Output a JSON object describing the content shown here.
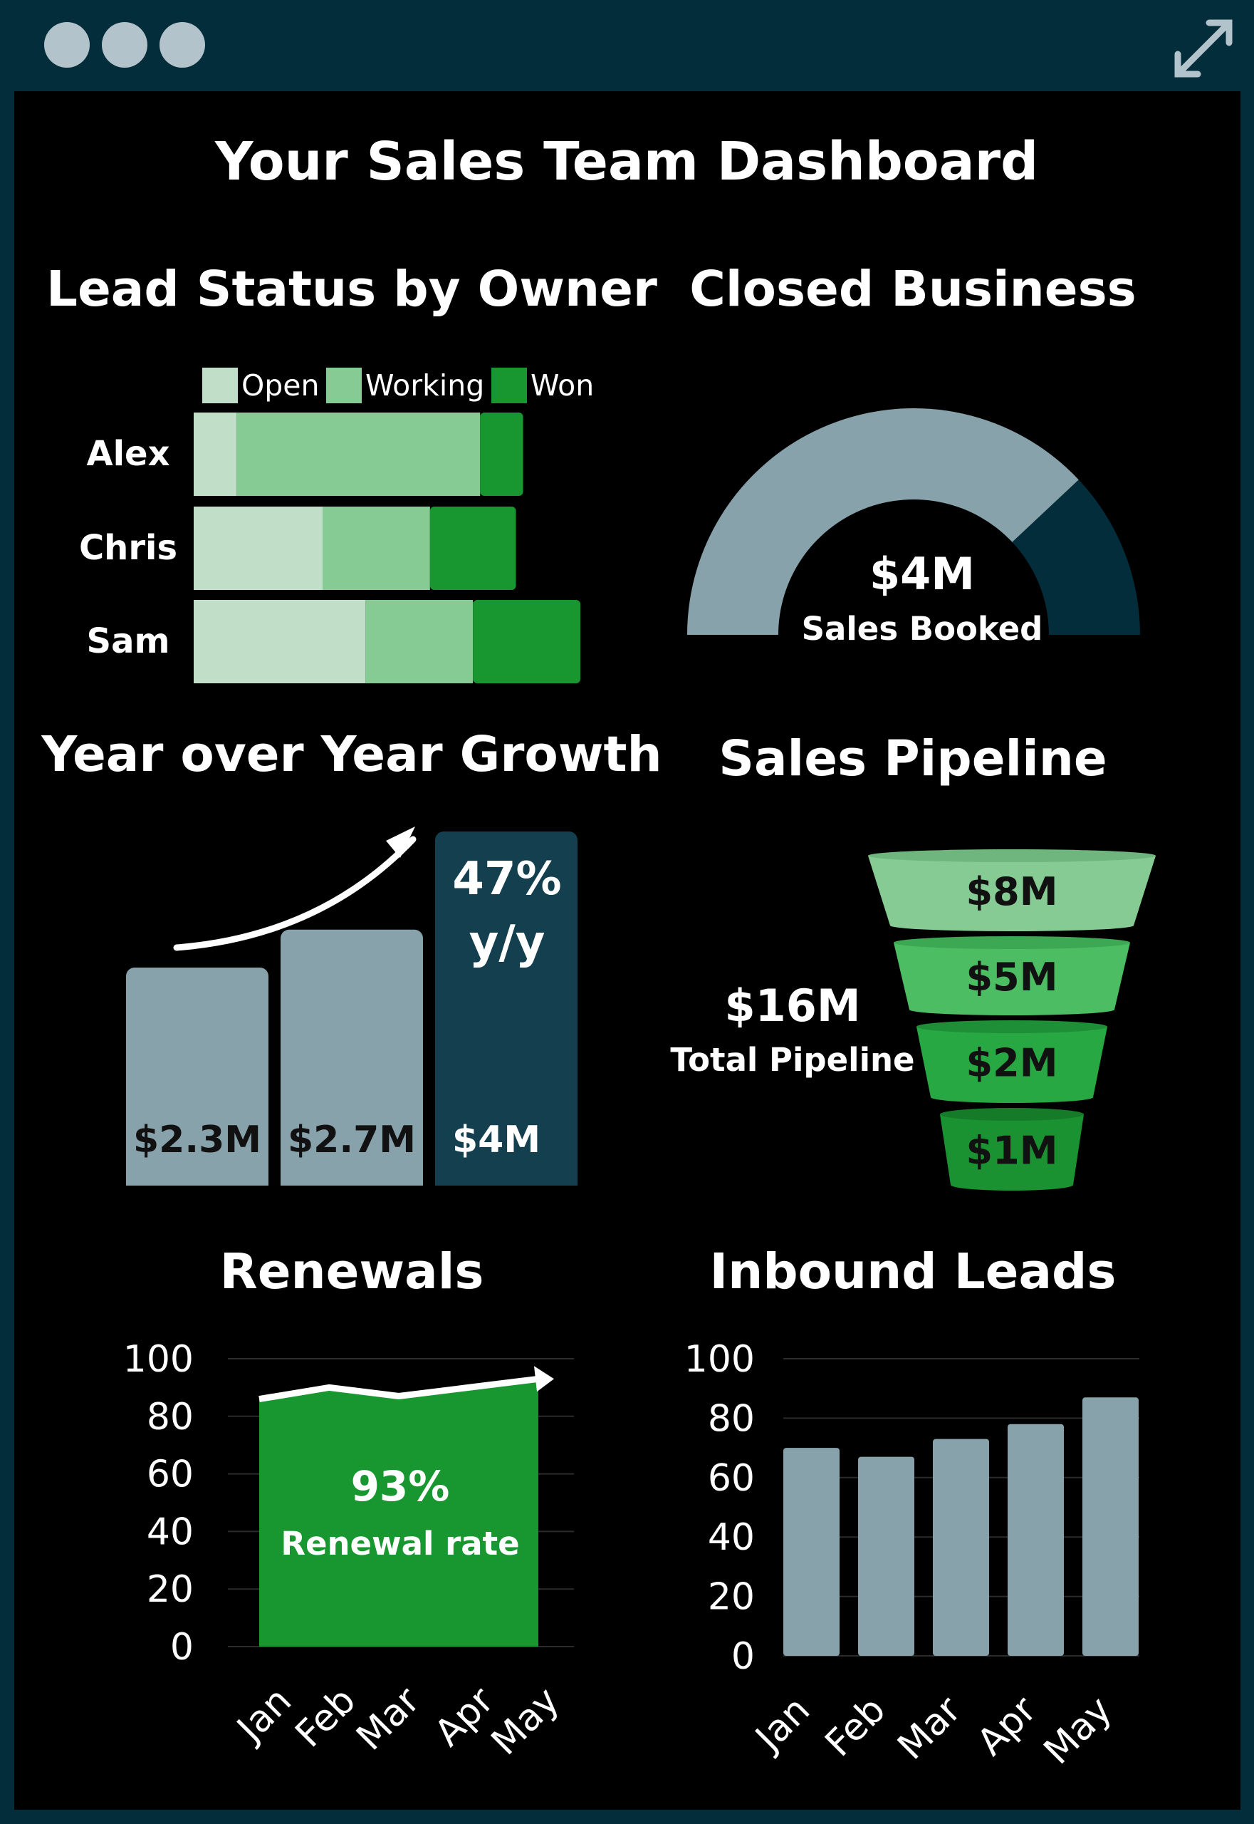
{
  "window": {
    "controls": [
      "window-dot",
      "window-dot",
      "window-dot"
    ],
    "resize_icon": "expand-arrows-icon"
  },
  "colors": {
    "frame": "#032d3a",
    "panel": "#000000",
    "open": "#c1dfc8",
    "working": "#85cb93",
    "won": "#18962f",
    "slate": "#87a2aa",
    "dark_teal": "#143f4f",
    "navy": "#032d3a"
  },
  "dashboard_title": "Your Sales Team Dashboard",
  "lead_status": {
    "title": "Lead Status by Owner",
    "legend": [
      "Open",
      "Working",
      "Won"
    ]
  },
  "closed_business": {
    "title": "Closed Business",
    "value": "$4M",
    "caption": "Sales Booked"
  },
  "yoy": {
    "title": "Year over Year Growth",
    "growth_line1": "47%",
    "growth_line2": "y/y"
  },
  "pipeline": {
    "title": "Sales Pipeline",
    "total": "$16M",
    "total_caption": "Total Pipeline"
  },
  "renewals": {
    "title": "Renewals",
    "rate": "93%",
    "rate_caption": "Renewal rate"
  },
  "inbound": {
    "title": "Inbound Leads"
  },
  "chart_data": [
    {
      "type": "bar",
      "orientation": "horizontal",
      "stacked": true,
      "title": "Lead Status by Owner",
      "categories": [
        "Alex",
        "Chris",
        "Sam"
      ],
      "series": [
        {
          "name": "Open",
          "values": [
            6,
            18,
            24
          ]
        },
        {
          "name": "Working",
          "values": [
            34,
            15,
            15
          ]
        },
        {
          "name": "Won",
          "values": [
            6,
            12,
            15
          ]
        }
      ],
      "legend": "top"
    },
    {
      "type": "pie",
      "variant": "half-donut gauge",
      "title": "Closed Business",
      "center_value": "$4M",
      "center_caption": "Sales Booked",
      "fraction_achieved": 0.76
    },
    {
      "type": "bar",
      "title": "Year over Year Growth",
      "values": [
        2.3,
        2.7,
        4
      ],
      "labels": [
        "$2.3M",
        "$2.7M",
        "$4M"
      ],
      "highlight_index": 2,
      "annotation": "47% y/y"
    },
    {
      "type": "bar",
      "variant": "funnel",
      "title": "Sales Pipeline",
      "values": [
        8,
        5,
        2,
        1
      ],
      "labels": [
        "$8M",
        "$5M",
        "$2M",
        "$1M"
      ],
      "total": "$16M",
      "total_caption": "Total Pipeline"
    },
    {
      "type": "area",
      "title": "Renewals",
      "categories": [
        "Jan",
        "Feb",
        "Mar",
        "Apr",
        "May"
      ],
      "values": [
        86,
        90,
        87,
        90,
        93
      ],
      "ylim": [
        0,
        100
      ],
      "yticks": [
        "0",
        "20",
        "40",
        "60",
        "80",
        "100"
      ],
      "annotation": "93% Renewal rate",
      "grid": true
    },
    {
      "type": "bar",
      "title": "Inbound Leads",
      "categories": [
        "Jan",
        "Feb",
        "Mar",
        "Apr",
        "May"
      ],
      "values": [
        70,
        67,
        73,
        78,
        87
      ],
      "ylim": [
        0,
        100
      ],
      "yticks": [
        "0",
        "20",
        "40",
        "60",
        "80",
        "100"
      ],
      "grid": true
    }
  ]
}
